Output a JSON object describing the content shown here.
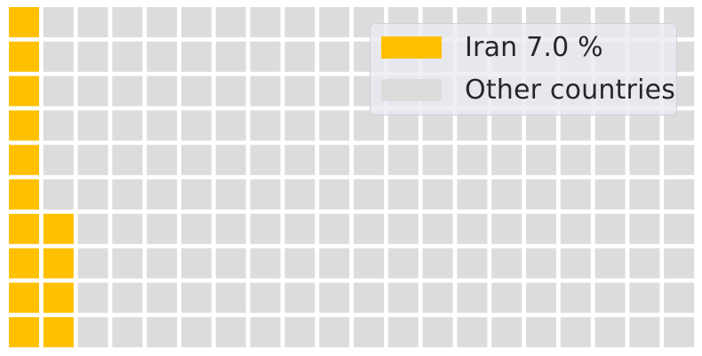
{
  "chart_data": {
    "type": "waffle",
    "rows": 10,
    "columns": 20,
    "series": [
      {
        "name": "Iran 7.0 %",
        "value": 7.0,
        "cells": 14,
        "color": "#FFC000"
      },
      {
        "name": "Other countries",
        "value": 93.0,
        "cells": 186,
        "color": "#DCDCDC"
      }
    ],
    "fill_order": "column-major, bottom-to-top, starting at left",
    "legend": {
      "placement": "top-right",
      "entries": [
        "Iran 7.0 %",
        "Other countries"
      ]
    },
    "title": "",
    "xlabel": "",
    "ylabel": "",
    "grid": false
  }
}
